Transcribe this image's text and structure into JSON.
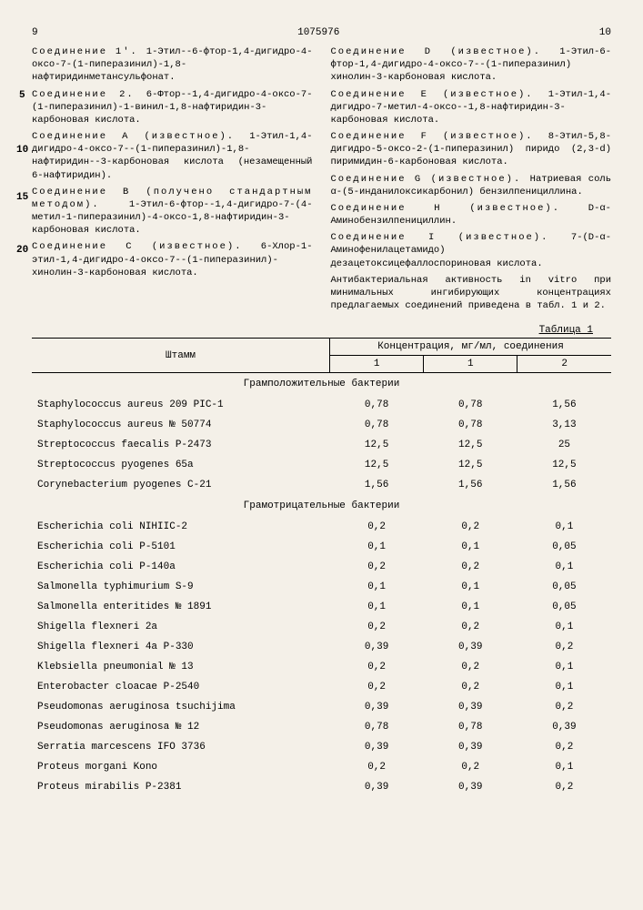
{
  "page_left": "9",
  "page_center": "1075976",
  "page_right": "10",
  "left_col": [
    {
      "label": "Соединение 1'.",
      "text": "1-Этил--6-фтор-1,4-дигидро-4-оксо-7-(1-пиперазинил)-1,8-нафтиридинметансульфонат."
    },
    {
      "label": "Соединение 2.",
      "text": "6-Фтор--1,4-дигидро-4-оксо-7-(1-пиперазинил)-1-винил-1,8-нафтиридин-3-карбоновая кислота."
    },
    {
      "label": "Соединение А (известное).",
      "text": "1-Этил-1,4-дигидро-4-оксо-7--(1-пиперазинил)-1,8-нафтиридин--3-карбоновая кислота (незамещенный 6-нафтиридин)."
    },
    {
      "label": "Соединение В (получено стандартным методом).",
      "text": "1-Этил-6-фтор--1,4-дигидро-7-(4-метил-1-пиперазинил)-4-оксо-1,8-нафтиридин-3-карбоновая кислота."
    },
    {
      "label": "Соединение С (известное).",
      "text": "6-Хлор-1-этил-1,4-дигидро-4-оксо-7--(1-пиперазинил)-хинолин-3-карбоновая кислота."
    }
  ],
  "right_col": [
    {
      "label": "Соединение D (известное).",
      "text": "1-Этил-6-фтор-1,4-дигидро-4-оксо-7--(1-пиперазинил) хинолин-3-карбоновая кислота."
    },
    {
      "label": "Соединение Е (известное).",
      "text": "1-Этил-1,4-дигидро-7-метил-4-оксо--1,8-нафтиридин-3-карбоновая кислота."
    },
    {
      "label": "Соединение F (известное).",
      "text": "8-Этил-5,8-дигидро-5-оксо-2-(1-пиперазинил) пиридо (2,3-d) пиримидин-6-карбоновая кислота."
    },
    {
      "label": "Соединение G (известное).",
      "text": "Натриевая соль α-(5-инданилоксикарбонил) бензилпенициллина."
    },
    {
      "label": "Соединение H (известное).",
      "text": "D-α-Аминобензилпенициллин."
    },
    {
      "label": "Соединение I (известное).",
      "text": "7-(D-α-Аминофенилацетамидо) дезацетоксицефаллоспориновая кислота."
    },
    {
      "label": "",
      "text": "Антибактериальная активность in vitro при минимальных ингибирующих концентрациях предлагаемых соединений приведена в табл. 1 и 2."
    }
  ],
  "line_markers": {
    "5": "5",
    "10": "10",
    "15": "15",
    "20": "20"
  },
  "table_title": "Таблица 1",
  "header": {
    "strain": "Штамм",
    "conc": "Концентрация, мг/мл, соединения",
    "c1": "1",
    "c2": "1",
    "c3": "2"
  },
  "section1": "Грамположительные бактерии",
  "section2": "Грамотрицательные бактерии",
  "gram_pos": [
    {
      "n": "Staphylococcus aureus 209 PIC-1",
      "a": "0,78",
      "b": "0,78",
      "c": "1,56"
    },
    {
      "n": "Staphylococcus aureus № 50774",
      "a": "0,78",
      "b": "0,78",
      "c": "3,13"
    },
    {
      "n": "Streptococcus faecalis P-2473",
      "a": "12,5",
      "b": "12,5",
      "c": "25"
    },
    {
      "n": "Streptococcus pyogenes 65a",
      "a": "12,5",
      "b": "12,5",
      "c": "12,5"
    },
    {
      "n": "Corynebacterium pyogenes C-21",
      "a": "1,56",
      "b": "1,56",
      "c": "1,56"
    }
  ],
  "gram_neg": [
    {
      "n": "Escherichia coli NIHIIC-2",
      "a": "0,2",
      "b": "0,2",
      "c": "0,1"
    },
    {
      "n": "Escherichia coli P-5101",
      "a": "0,1",
      "b": "0,1",
      "c": "0,05"
    },
    {
      "n": "Escherichia coli P-140a",
      "a": "0,2",
      "b": "0,2",
      "c": "0,1"
    },
    {
      "n": "Salmonella typhimurium S-9",
      "a": "0,1",
      "b": "0,1",
      "c": "0,05"
    },
    {
      "n": "Salmonella enteritides № 1891",
      "a": "0,1",
      "b": "0,1",
      "c": "0,05"
    },
    {
      "n": "Shigella flexneri 2a",
      "a": "0,2",
      "b": "0,2",
      "c": "0,1"
    },
    {
      "n": "Shigella flexneri 4a P-330",
      "a": "0,39",
      "b": "0,39",
      "c": "0,2"
    },
    {
      "n": "Klebsiella pneumonial № 13",
      "a": "0,2",
      "b": "0,2",
      "c": "0,1"
    },
    {
      "n": "Enterobacter cloacae P-2540",
      "a": "0,2",
      "b": "0,2",
      "c": "0,1"
    },
    {
      "n": "Pseudomonas aeruginosa tsuchijima",
      "a": "0,39",
      "b": "0,39",
      "c": "0,2"
    },
    {
      "n": "Pseudomonas aeruginosa № 12",
      "a": "0,78",
      "b": "0,78",
      "c": "0,39"
    },
    {
      "n": "Serratia marcescens IFO 3736",
      "a": "0,39",
      "b": "0,39",
      "c": "0,2"
    },
    {
      "n": "Proteus morgani Kono",
      "a": "0,2",
      "b": "0,2",
      "c": "0,1"
    },
    {
      "n": "Proteus mirabilis P-2381",
      "a": "0,39",
      "b": "0,39",
      "c": "0,2"
    }
  ]
}
